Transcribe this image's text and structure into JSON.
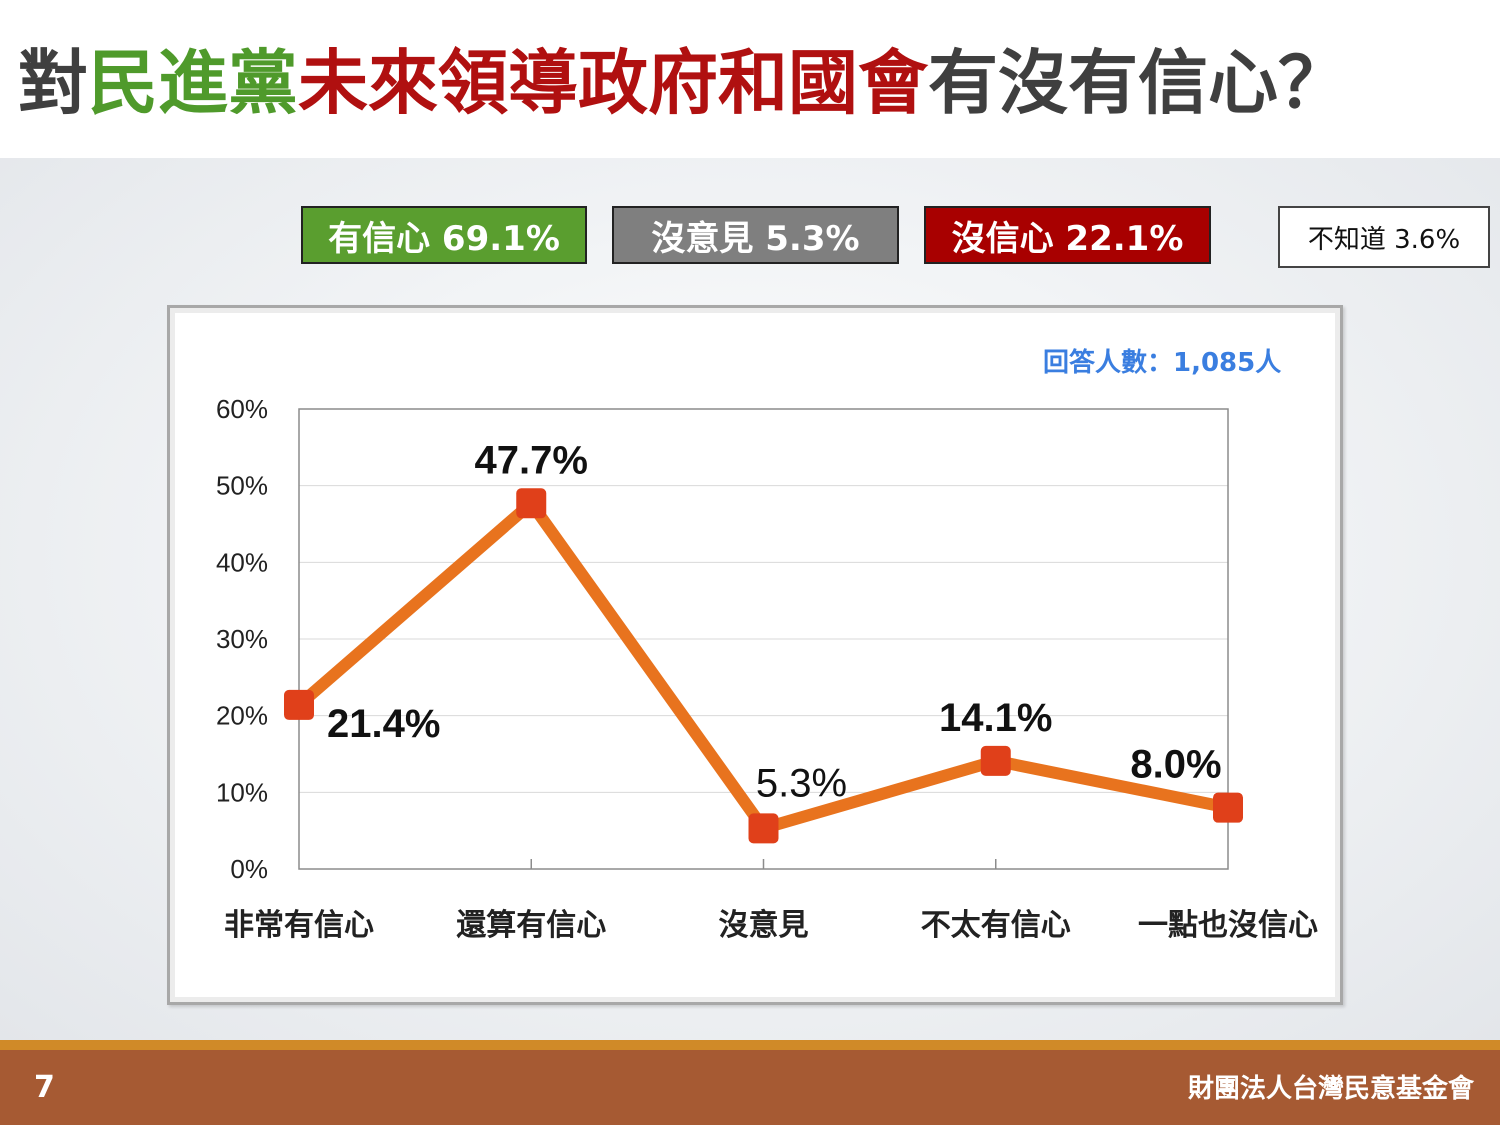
{
  "title": {
    "segments": [
      {
        "text": "對",
        "color": "dark"
      },
      {
        "text": "民進黨",
        "color": "green"
      },
      {
        "text": "未來領導政府和國會",
        "color": "red"
      },
      {
        "text": "有沒有信心？",
        "color": "dark"
      }
    ]
  },
  "summary_badges": [
    {
      "label": "有信心 69.1%",
      "style": "green"
    },
    {
      "label": "沒意見 5.3%",
      "style": "gray"
    },
    {
      "label": "沒信心 22.1%",
      "style": "red"
    },
    {
      "label": "不知道 3.6%",
      "style": "white"
    }
  ],
  "respondents": "回答人數：1,085人",
  "colors": {
    "title_dark": "#3f3f3f",
    "title_green": "#4f9a2b",
    "title_red": "#b01010",
    "line": "#e8731e",
    "marker": "#e0401a",
    "respondents": "#3a7ee0",
    "footer": "#a65a33",
    "footer_stripe": "#d08a28"
  },
  "chart_data": {
    "type": "line",
    "categories": [
      "非常有信心",
      "還算有信心",
      "沒意見",
      "不太有信心",
      "一點也沒信心"
    ],
    "values": [
      21.4,
      47.7,
      5.3,
      14.1,
      8.0
    ],
    "data_labels": [
      "21.4%",
      "47.7%",
      "5.3%",
      "14.1%",
      "8.0%"
    ],
    "ylim": [
      0,
      60
    ],
    "yticks": [
      "0%",
      "10%",
      "20%",
      "30%",
      "40%",
      "50%",
      "60%"
    ],
    "grid": true,
    "title": "",
    "xlabel": "",
    "ylabel": ""
  },
  "footer": {
    "page_number": "7",
    "organization": "財團法人台灣民意基金會"
  }
}
